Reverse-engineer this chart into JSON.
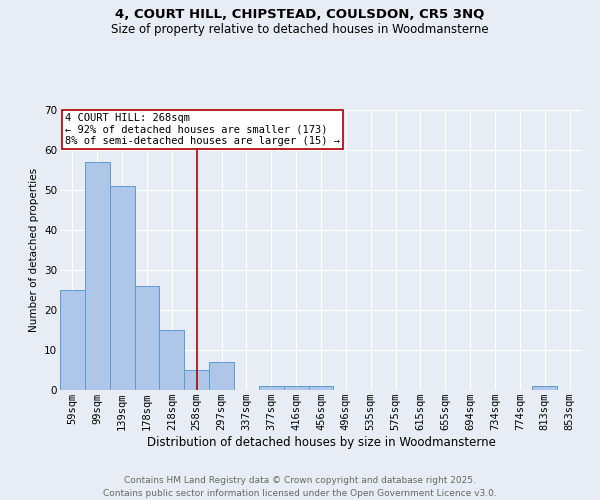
{
  "title": "4, COURT HILL, CHIPSTEAD, COULSDON, CR5 3NQ",
  "subtitle": "Size of property relative to detached houses in Woodmansterne",
  "xlabel": "Distribution of detached houses by size in Woodmansterne",
  "ylabel": "Number of detached properties",
  "categories": [
    "59sqm",
    "99sqm",
    "139sqm",
    "178sqm",
    "218sqm",
    "258sqm",
    "297sqm",
    "337sqm",
    "377sqm",
    "416sqm",
    "456sqm",
    "496sqm",
    "535sqm",
    "575sqm",
    "615sqm",
    "655sqm",
    "694sqm",
    "734sqm",
    "774sqm",
    "813sqm",
    "853sqm"
  ],
  "values": [
    25,
    57,
    51,
    26,
    15,
    5,
    7,
    0,
    1,
    1,
    1,
    0,
    0,
    0,
    0,
    0,
    0,
    0,
    0,
    1,
    0
  ],
  "bar_color": "#aec6e8",
  "bar_edge_color": "#5b9bd5",
  "vline_x_index": 5,
  "vline_color": "#aa0000",
  "annotation_text": "4 COURT HILL: 268sqm\n← 92% of detached houses are smaller (173)\n8% of semi-detached houses are larger (15) →",
  "annotation_box_color": "#ffffff",
  "annotation_box_edge_color": "#aa0000",
  "annotation_fontsize": 7.5,
  "ylim": [
    0,
    70
  ],
  "yticks": [
    0,
    10,
    20,
    30,
    40,
    50,
    60,
    70
  ],
  "background_color": "#e8edf5",
  "grid_color": "#ffffff",
  "title_fontsize": 9.5,
  "subtitle_fontsize": 8.5,
  "xlabel_fontsize": 8.5,
  "ylabel_fontsize": 7.5,
  "tick_fontsize": 7.5,
  "footer_text": "Contains HM Land Registry data © Crown copyright and database right 2025.\nContains public sector information licensed under the Open Government Licence v3.0.",
  "footer_fontsize": 6.5,
  "footer_color": "#666666"
}
